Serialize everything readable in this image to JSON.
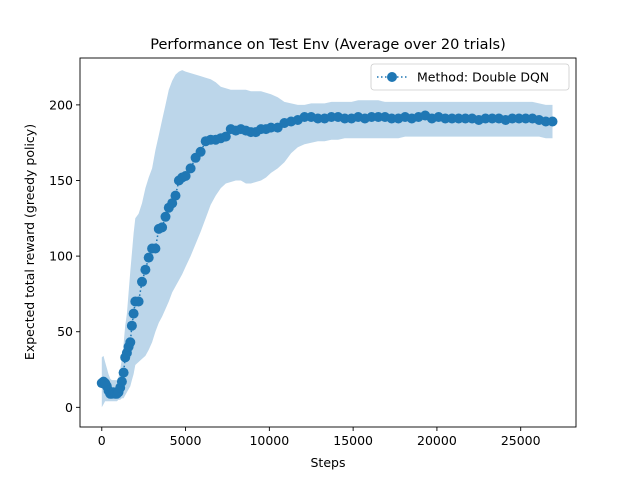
{
  "chart_data": {
    "type": "line",
    "title": "Performance on Test Env (Average over 20 trials)",
    "xlabel": "Steps",
    "ylabel": "Expected total reward (greedy policy)",
    "xlim": [
      -1300,
      28300
    ],
    "ylim": [
      -13,
      231
    ],
    "xticks": [
      0,
      5000,
      10000,
      15000,
      20000,
      25000
    ],
    "yticks": [
      0,
      50,
      100,
      150,
      200
    ],
    "xtick_labels": [
      "0",
      "5000",
      "10000",
      "15000",
      "20000",
      "25000"
    ],
    "ytick_labels": [
      "0",
      "50",
      "100",
      "150",
      "200"
    ],
    "grid": false,
    "legend_position": "top-right",
    "colors": {
      "line": "#1f77b4",
      "band": "#bcd6ea"
    },
    "series": [
      {
        "name": "Method: Double DQN",
        "x": [
          0,
          100,
          200,
          300,
          400,
          500,
          600,
          700,
          800,
          900,
          1000,
          1100,
          1200,
          1300,
          1400,
          1500,
          1600,
          1700,
          1800,
          1900,
          2000,
          2200,
          2400,
          2600,
          2800,
          3000,
          3200,
          3400,
          3600,
          3800,
          4000,
          4200,
          4400,
          4600,
          4800,
          5000,
          5300,
          5600,
          5900,
          6200,
          6500,
          6800,
          7100,
          7400,
          7700,
          8000,
          8300,
          8600,
          8900,
          9200,
          9500,
          9800,
          10100,
          10500,
          10900,
          11300,
          11700,
          12100,
          12500,
          12900,
          13300,
          13700,
          14100,
          14500,
          14900,
          15300,
          15700,
          16100,
          16500,
          16900,
          17300,
          17700,
          18100,
          18500,
          18900,
          19300,
          19700,
          20100,
          20500,
          20900,
          21300,
          21700,
          22100,
          22500,
          22900,
          23300,
          23700,
          24100,
          24500,
          24900,
          25300,
          25700,
          26100,
          26500,
          26900
        ],
        "y": [
          16,
          17,
          16,
          14,
          11,
          9,
          9,
          10,
          9,
          9,
          10,
          13,
          17,
          23,
          33,
          36,
          40,
          43,
          54,
          62,
          70,
          70,
          83,
          91,
          99,
          105,
          105,
          118,
          119,
          126,
          132,
          135,
          140,
          150,
          152,
          153,
          158,
          165,
          169,
          176,
          177,
          177,
          178,
          179,
          184,
          183,
          184,
          183,
          182,
          182,
          184,
          184,
          185,
          185,
          188,
          189,
          190,
          192,
          192,
          191,
          191,
          192,
          192,
          191,
          191,
          192,
          191,
          192,
          192,
          192,
          191,
          191,
          192,
          191,
          192,
          193,
          191,
          192,
          191,
          191,
          191,
          191,
          191,
          190,
          191,
          191,
          191,
          190,
          191,
          191,
          191,
          191,
          190,
          189,
          189
        ],
        "upper": [
          33,
          34,
          30,
          26,
          22,
          19,
          18,
          18,
          18,
          18,
          20,
          25,
          32,
          42,
          54,
          62,
          76,
          90,
          102,
          115,
          125,
          128,
          135,
          145,
          152,
          158,
          170,
          180,
          190,
          200,
          210,
          216,
          220,
          222,
          223,
          222,
          221,
          220,
          219,
          218,
          217,
          215,
          212,
          211,
          210,
          210,
          210,
          210,
          209,
          209,
          209,
          208,
          207,
          205,
          202,
          201,
          200,
          200,
          201,
          201,
          201,
          202,
          202,
          202,
          202,
          203,
          203,
          203,
          203,
          202,
          202,
          202,
          202,
          202,
          202,
          202,
          202,
          202,
          202,
          202,
          202,
          202,
          202,
          202,
          202,
          202,
          202,
          202,
          202,
          202,
          202,
          202,
          201,
          200,
          200
        ],
        "lower": [
          0,
          2,
          4,
          4,
          4,
          4,
          4,
          4,
          4,
          4,
          5,
          5,
          6,
          6,
          8,
          10,
          12,
          14,
          18,
          22,
          28,
          30,
          32,
          34,
          38,
          43,
          50,
          56,
          60,
          65,
          70,
          76,
          80,
          84,
          88,
          93,
          100,
          108,
          116,
          125,
          134,
          140,
          145,
          148,
          149,
          150,
          150,
          148,
          148,
          149,
          150,
          152,
          155,
          158,
          162,
          168,
          172,
          174,
          175,
          176,
          176,
          177,
          177,
          178,
          178,
          178,
          178,
          178,
          178,
          178,
          178,
          178,
          179,
          179,
          179,
          179,
          179,
          179,
          179,
          179,
          179,
          179,
          179,
          179,
          179,
          179,
          179,
          179,
          179,
          179,
          179,
          179,
          179,
          178,
          178
        ]
      }
    ]
  }
}
